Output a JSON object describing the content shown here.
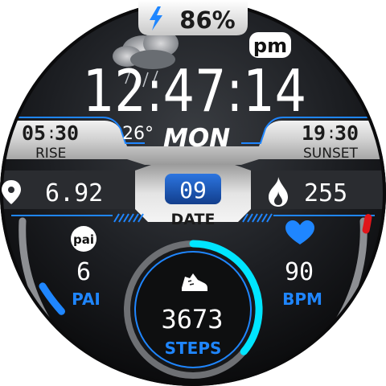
{
  "battery": {
    "percent_text": "86%",
    "icon": "lightning-bolt-icon"
  },
  "clock": {
    "ampm": "pm",
    "time": "12:47:14",
    "temperature": "26°",
    "weekday": "MON"
  },
  "sun": {
    "rise_hour": "05",
    "rise_min": "30",
    "rise_label": "RISE",
    "set_hour": "19",
    "set_min": "30",
    "set_label": "SUNSET"
  },
  "distance": {
    "value": "6.92",
    "icon": "location-pin-icon"
  },
  "date": {
    "day": "09",
    "label": "DATE"
  },
  "calories": {
    "value": "255",
    "icon": "flame-icon"
  },
  "pai": {
    "badge": "pai",
    "value": "6",
    "label": "PAI",
    "level": 0.3
  },
  "heart": {
    "value": "90",
    "label": "BPM",
    "icon": "heart-icon",
    "level": 0.12
  },
  "steps": {
    "value": "3673",
    "label": "STEPS",
    "icon": "sneaker-icon",
    "progress": 0.36
  },
  "colors": {
    "accent_blue": "#1f86ff",
    "cyan": "#00e5ff",
    "red": "#e0161b",
    "text_white": "#ffffff",
    "text_dark": "#1b1b1b",
    "date_chip": "#1b5fc4"
  }
}
